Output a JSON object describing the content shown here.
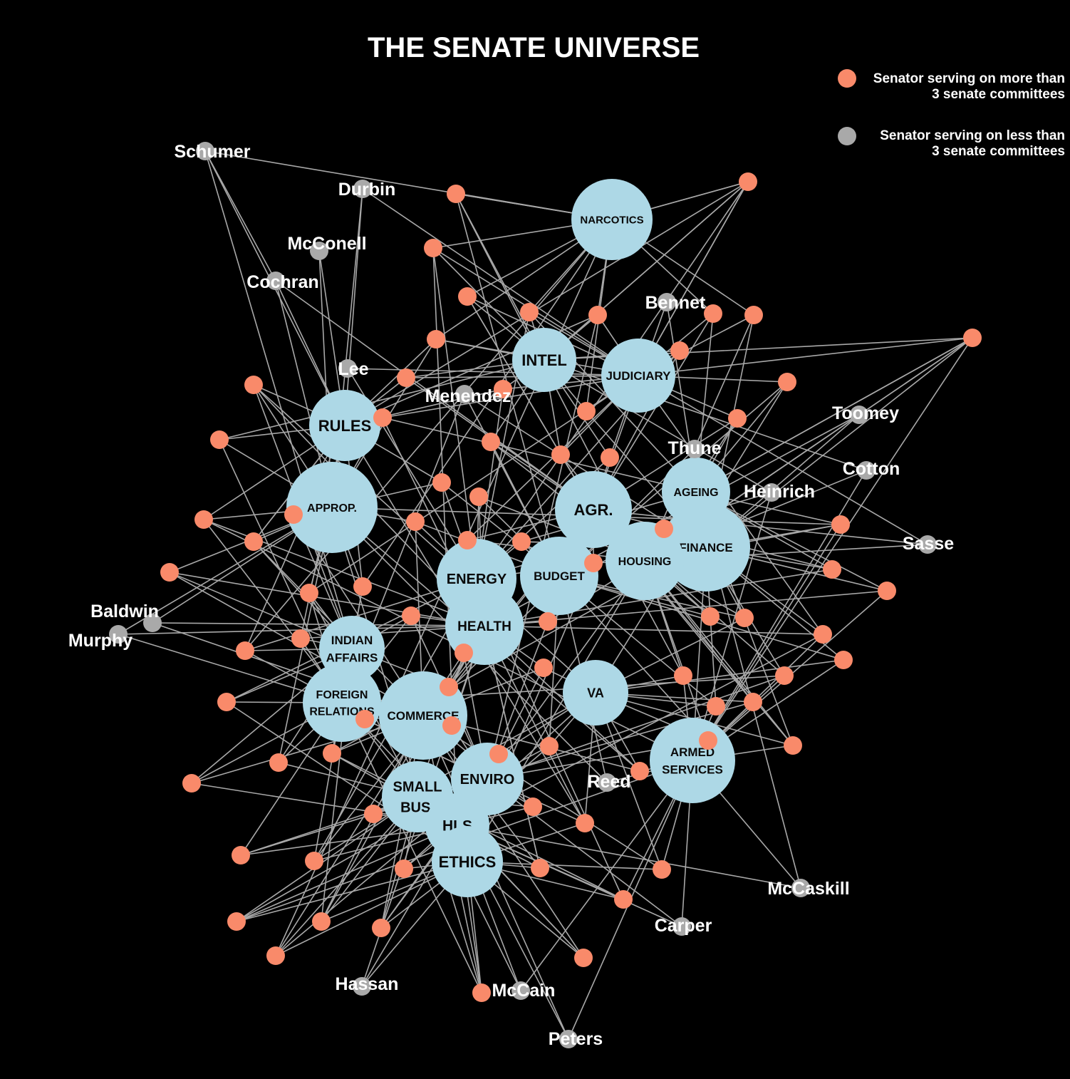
{
  "title": "THE SENATE UNIVERSE",
  "colors": {
    "background": "#000000",
    "committee": "#add8e6",
    "senator_more": "#f98a6a",
    "senator_less": "#a9a9a9",
    "edge": "#a8a8a8",
    "label": "#ffffff"
  },
  "legend": {
    "more": {
      "line1": "Senator serving on more than",
      "line2": "3 senate committees"
    },
    "less": {
      "line1": "Senator serving on less than",
      "line2": "3 senate committees"
    }
  },
  "committees": [
    {
      "id": "NARC",
      "lines": [
        "NARCOTICS"
      ]
    },
    {
      "id": "INTEL",
      "lines": [
        "INTEL"
      ]
    },
    {
      "id": "JUD",
      "lines": [
        "JUDICIARY"
      ]
    },
    {
      "id": "RULES",
      "lines": [
        "RULES"
      ]
    },
    {
      "id": "APPROP",
      "lines": [
        "APPROP."
      ]
    },
    {
      "id": "AGR",
      "lines": [
        "AGR."
      ]
    },
    {
      "id": "AGEING",
      "lines": [
        "AGEING"
      ]
    },
    {
      "id": "FIN",
      "lines": [
        "FINANCE"
      ]
    },
    {
      "id": "HOUSING",
      "lines": [
        "HOUSING"
      ]
    },
    {
      "id": "BUDGET",
      "lines": [
        "BUDGET"
      ]
    },
    {
      "id": "ENERGY",
      "lines": [
        "ENERGY"
      ]
    },
    {
      "id": "HEALTH",
      "lines": [
        "HEALTH"
      ]
    },
    {
      "id": "INDIAN",
      "lines": [
        "INDIAN",
        "AFFAIRS"
      ]
    },
    {
      "id": "FOREIGN",
      "lines": [
        "FOREIGN",
        "RELATIONS"
      ]
    },
    {
      "id": "COMMERCE",
      "lines": [
        "COMMERCE"
      ]
    },
    {
      "id": "VA",
      "lines": [
        "VA"
      ]
    },
    {
      "id": "ARMED",
      "lines": [
        "ARMED",
        "SERVICES"
      ]
    },
    {
      "id": "ENVIRO",
      "lines": [
        "ENVIRO"
      ]
    },
    {
      "id": "SMALLBUS",
      "lines": [
        "SMALL",
        "BUS."
      ]
    },
    {
      "id": "HLS",
      "lines": [
        "HLS"
      ]
    },
    {
      "id": "ETHICS",
      "lines": [
        "ETHICS"
      ]
    }
  ],
  "named_senators": [
    {
      "id": "Schumer",
      "name": "Schumer"
    },
    {
      "id": "Durbin",
      "name": "Durbin"
    },
    {
      "id": "McConell",
      "name": "McConell"
    },
    {
      "id": "Cochran",
      "name": "Cochran"
    },
    {
      "id": "Lee",
      "name": "Lee"
    },
    {
      "id": "Menendez",
      "name": "Menendez"
    },
    {
      "id": "Bennet",
      "name": "Bennet"
    },
    {
      "id": "Toomey",
      "name": "Toomey"
    },
    {
      "id": "Thune",
      "name": "Thune"
    },
    {
      "id": "Cotton",
      "name": "Cotton"
    },
    {
      "id": "Heinrich",
      "name": "Heinrich"
    },
    {
      "id": "Sasse",
      "name": "Sasse"
    },
    {
      "id": "Baldwin",
      "name": "Baldwin"
    },
    {
      "id": "Murphy",
      "name": "Murphy"
    },
    {
      "id": "Reed",
      "name": "Reed"
    },
    {
      "id": "McCaskill",
      "name": "McCaskill"
    },
    {
      "id": "Carper",
      "name": "Carper"
    },
    {
      "id": "Hassan",
      "name": "Hassan"
    },
    {
      "id": "McCain",
      "name": "McCain"
    },
    {
      "id": "Peters",
      "name": "Peters"
    }
  ]
}
